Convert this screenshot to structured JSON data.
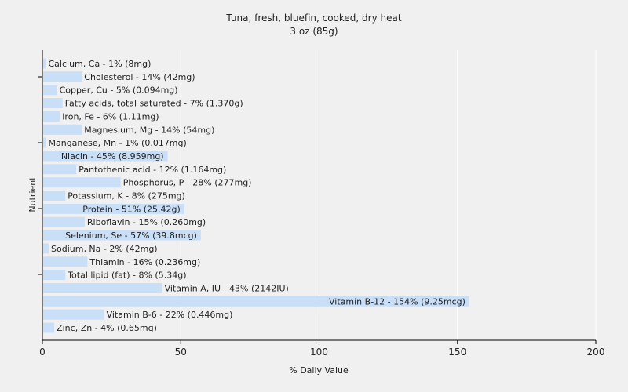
{
  "chart_data": {
    "type": "bar",
    "orientation": "horizontal",
    "title": "Tuna, fresh, bluefin, cooked, dry heat",
    "subtitle": "3 oz (85g)",
    "xlabel": "% Daily Value",
    "ylabel": "Nutrient",
    "xlim": [
      0,
      200
    ],
    "xticks": [
      0,
      50,
      100,
      150,
      200
    ],
    "grid": true,
    "bar_color": "#c9dff8",
    "background": "#f0f0f0",
    "categories": [
      "Calcium, Ca",
      "Cholesterol",
      "Copper, Cu",
      "Fatty acids, total saturated",
      "Iron, Fe",
      "Magnesium, Mg",
      "Manganese, Mn",
      "Niacin",
      "Pantothenic acid",
      "Phosphorus, P",
      "Potassium, K",
      "Protein",
      "Riboflavin",
      "Selenium, Se",
      "Sodium, Na",
      "Thiamin",
      "Total lipid (fat)",
      "Vitamin A, IU",
      "Vitamin B-12",
      "Vitamin B-6",
      "Zinc, Zn"
    ],
    "values": [
      1,
      14,
      5,
      7,
      6,
      14,
      1,
      45,
      12,
      28,
      8,
      51,
      15,
      57,
      2,
      16,
      8,
      43,
      154,
      22,
      4
    ],
    "labels": [
      "Calcium, Ca - 1% (8mg)",
      "Cholesterol - 14% (42mg)",
      "Copper, Cu - 5% (0.094mg)",
      "Fatty acids, total saturated - 7% (1.370g)",
      "Iron, Fe - 6% (1.11mg)",
      "Magnesium, Mg - 14% (54mg)",
      "Manganese, Mn - 1% (0.017mg)",
      "Niacin - 45% (8.959mg)",
      "Pantothenic acid - 12% (1.164mg)",
      "Phosphorus, P - 28% (277mg)",
      "Potassium, K - 8% (275mg)",
      "Protein - 51% (25.42g)",
      "Riboflavin - 15% (0.260mg)",
      "Selenium, Se - 57% (39.8mcg)",
      "Sodium, Na - 2% (42mg)",
      "Thiamin - 16% (0.236mg)",
      "Total lipid (fat) - 8% (5.34g)",
      "Vitamin A, IU - 43% (2142IU)",
      "Vitamin B-12 - 154% (9.25mcg)",
      "Vitamin B-6 - 22% (0.446mg)",
      "Zinc, Zn - 4% (0.65mg)"
    ]
  }
}
